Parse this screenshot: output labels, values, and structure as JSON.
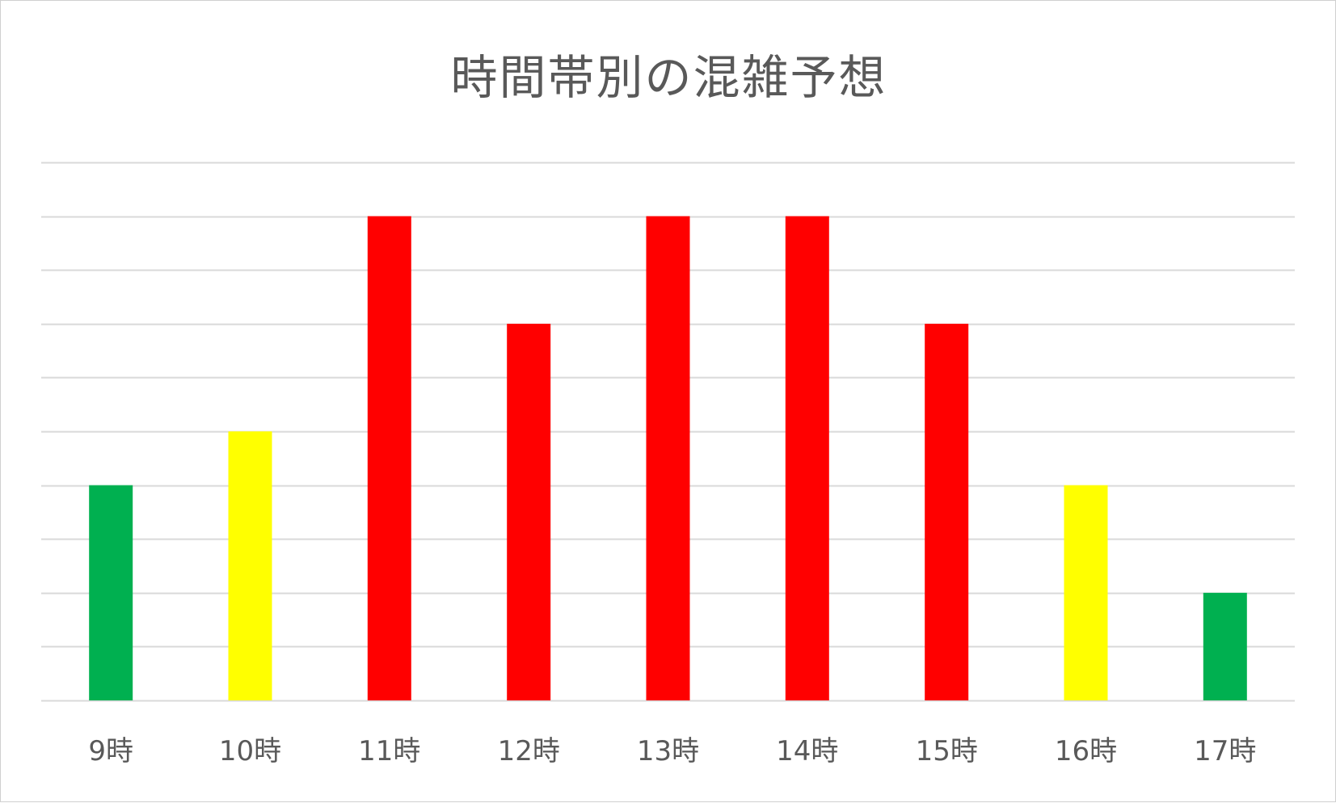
{
  "chart_data": {
    "type": "bar",
    "title": "時間帯別の混雑予想",
    "categories": [
      "9時",
      "10時",
      "11時",
      "12時",
      "13時",
      "14時",
      "15時",
      "16時",
      "17時"
    ],
    "values": [
      4,
      5,
      9,
      7,
      9,
      9,
      7,
      4,
      2
    ],
    "bar_colors": [
      "#00B050",
      "#FFFF00",
      "#FF0000",
      "#FF0000",
      "#FF0000",
      "#FF0000",
      "#FF0000",
      "#FFFF00",
      "#00B050"
    ],
    "ylim": [
      0,
      10
    ],
    "gridlines": true,
    "gridline_color": "#d9d9d9",
    "y_tick_labels_visible": false,
    "legend": "none",
    "xlabel": "",
    "ylabel": ""
  }
}
